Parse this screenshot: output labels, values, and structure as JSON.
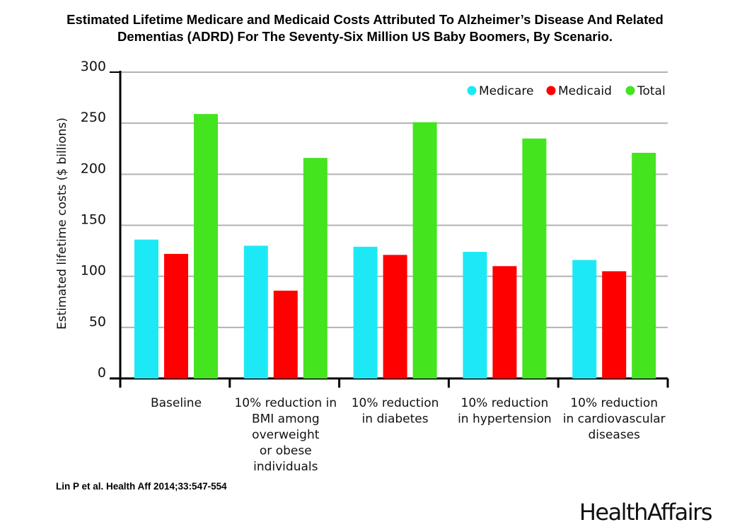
{
  "title_line1": "Estimated Lifetime Medicare and Medicaid Costs Attributed To Alzheimer’s Disease And Related",
  "title_line2": "Dementias (ADRD) For The Seventy-Six Million US Baby Boomers, By Scenario.",
  "source": "Lin P et al. Health Aff 2014;33:547-554",
  "brand": "HealthAffairs",
  "chart_data": {
    "type": "bar",
    "ylabel": "Estimated lifetime costs ($ billions)",
    "ylim": [
      0,
      300
    ],
    "yticks": [
      0,
      50,
      100,
      150,
      200,
      250,
      300
    ],
    "grid": true,
    "legend_position": "top-right",
    "categories": [
      [
        "Baseline"
      ],
      [
        "10% reduction in",
        "BMI among",
        "overweight",
        "or obese",
        "individuals"
      ],
      [
        "10% reduction",
        "in diabetes"
      ],
      [
        "10% reduction",
        "in hypertension"
      ],
      [
        "10% reduction",
        "in cardiovascular",
        "diseases"
      ]
    ],
    "series": [
      {
        "name": "Medicare",
        "color": "#1de9f6",
        "values": [
          136,
          130,
          129,
          124,
          116
        ]
      },
      {
        "name": "Medicaid",
        "color": "#ff0000",
        "values": [
          122,
          86,
          121,
          110,
          105
        ]
      },
      {
        "name": "Total",
        "color": "#44e41e",
        "values": [
          259,
          216,
          251,
          235,
          221
        ]
      }
    ]
  }
}
